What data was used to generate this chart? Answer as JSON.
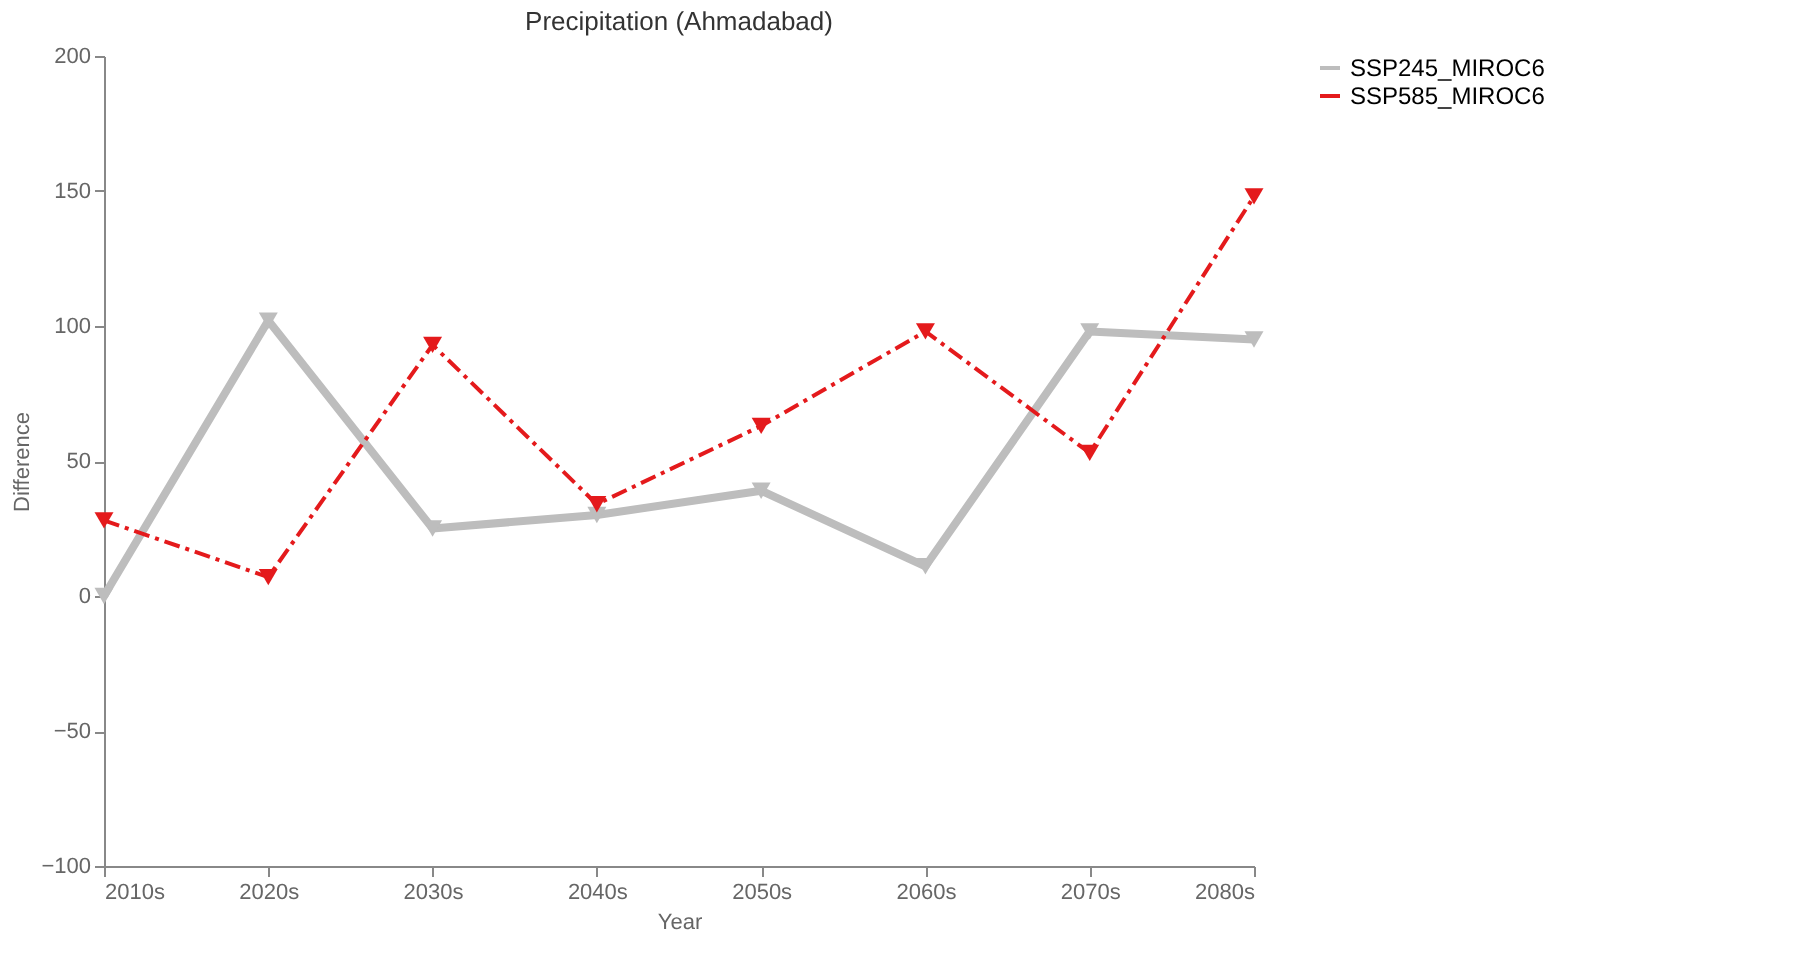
{
  "chart_data": {
    "type": "line",
    "title": "Precipitation (Ahmadabad)",
    "xlabel": "Year",
    "ylabel": "Difference",
    "categories": [
      "2010s",
      "2020s",
      "2030s",
      "2040s",
      "2050s",
      "2060s",
      "2070s",
      "2080s"
    ],
    "series": [
      {
        "name": "SSP245_MIROC6",
        "color": "#bdbdbd",
        "line_style": "solid",
        "values": [
          0,
          102,
          25,
          30,
          39,
          11,
          98,
          95
        ]
      },
      {
        "name": "SSP585_MIROC6",
        "color": "#e41a1c",
        "line_style": "dashed",
        "values": [
          28,
          7,
          93,
          34,
          63,
          98,
          53,
          148
        ]
      }
    ],
    "ylim": [
      -100,
      200
    ],
    "yticks": [
      -100,
      -50,
      0,
      50,
      100,
      150,
      200
    ],
    "grid": false,
    "legend": "top right",
    "marker": "triangle"
  }
}
